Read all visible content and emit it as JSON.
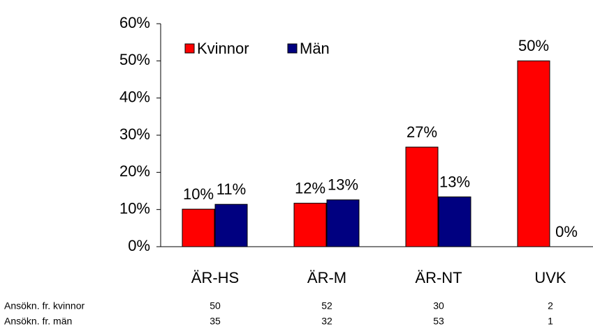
{
  "chart_data": {
    "type": "bar",
    "categories": [
      "ÄR-HS",
      "ÄR-M",
      "ÄR-NT",
      "UVK"
    ],
    "series": [
      {
        "name": "Kvinnor",
        "color": "#ff0000",
        "values": [
          10.1,
          11.7,
          26.8,
          50
        ],
        "value_labels": [
          "10%",
          "12%",
          "27%",
          "50%"
        ]
      },
      {
        "name": "Män",
        "color": "#000080",
        "values": [
          11.4,
          12.6,
          13.4,
          0
        ],
        "value_labels": [
          "11%",
          "13%",
          "13%",
          "0%"
        ]
      }
    ],
    "ylim": [
      0,
      60
    ],
    "yticks": [
      {
        "value": 0,
        "label": "0%"
      },
      {
        "value": 10,
        "label": "10%"
      },
      {
        "value": 20,
        "label": "20%"
      },
      {
        "value": 30,
        "label": "30%"
      },
      {
        "value": 40,
        "label": "40%"
      },
      {
        "value": 50,
        "label": "50%"
      },
      {
        "value": 60,
        "label": "60%"
      }
    ],
    "legend": "top-left",
    "table": {
      "rows": [
        {
          "label": "Ansökn. fr. kvinnor",
          "values": [
            50,
            52,
            30,
            2
          ]
        },
        {
          "label": "Ansökn. fr. män",
          "values": [
            35,
            32,
            53,
            1
          ]
        }
      ]
    }
  }
}
